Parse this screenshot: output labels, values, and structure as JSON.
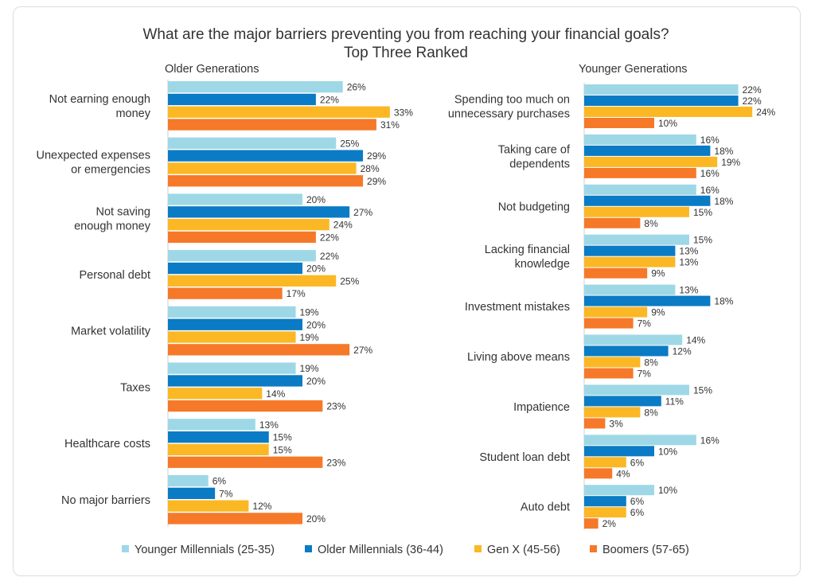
{
  "title_line1": "What are the major barriers preventing you from reaching your financial goals?",
  "title_line2": "Top Three Ranked",
  "colors": {
    "younger_millennials": "#9ed8e6",
    "older_millennials": "#0a7bc4",
    "gen_x": "#fbb824",
    "boomers": "#f57929"
  },
  "legend": [
    {
      "label": "Younger Millennials (25-35)",
      "color": "#9ed8e6"
    },
    {
      "label": "Older Millennials (36-44)",
      "color": "#0a7bc4"
    },
    {
      "label": "Gen X (45-56)",
      "color": "#fbb824"
    },
    {
      "label": "Boomers (57-65)",
      "color": "#f57929"
    }
  ],
  "chart_data": [
    {
      "type": "bar",
      "orientation": "horizontal",
      "panel_title": "Older Generations",
      "categories": [
        [
          "Not earning enough",
          "money"
        ],
        [
          "Unexpected expenses",
          "or emergencies"
        ],
        [
          "Not saving",
          "enough money"
        ],
        [
          "Personal debt"
        ],
        [
          "Market volatility"
        ],
        [
          "Taxes"
        ],
        [
          "Healthcare costs"
        ],
        [
          "No major barriers"
        ]
      ],
      "series": [
        {
          "name": "Younger Millennials (25-35)",
          "values": [
            26,
            25,
            20,
            22,
            19,
            19,
            13,
            6
          ]
        },
        {
          "name": "Older Millennials (36-44)",
          "values": [
            22,
            29,
            27,
            20,
            20,
            20,
            15,
            7
          ]
        },
        {
          "name": "Gen X (45-56)",
          "values": [
            33,
            28,
            24,
            25,
            19,
            14,
            15,
            12
          ]
        },
        {
          "name": "Boomers (57-65)",
          "values": [
            31,
            29,
            22,
            17,
            27,
            23,
            23,
            20
          ]
        }
      ],
      "value_suffix": "%"
    },
    {
      "type": "bar",
      "orientation": "horizontal",
      "panel_title": "Younger Generations",
      "categories": [
        [
          "Spending too much on",
          "unnecessary purchases"
        ],
        [
          "Taking care of",
          "dependents"
        ],
        [
          "Not budgeting"
        ],
        [
          "Lacking financial",
          "knowledge"
        ],
        [
          "Investment mistakes"
        ],
        [
          "Living above means"
        ],
        [
          "Impatience"
        ],
        [
          "Student loan debt"
        ],
        [
          "Auto debt"
        ]
      ],
      "series": [
        {
          "name": "Younger Millennials (25-35)",
          "values": [
            22,
            16,
            16,
            15,
            13,
            14,
            15,
            16,
            10
          ]
        },
        {
          "name": "Older Millennials (36-44)",
          "values": [
            22,
            18,
            18,
            13,
            18,
            12,
            11,
            10,
            6
          ]
        },
        {
          "name": "Gen X (45-56)",
          "values": [
            24,
            19,
            15,
            13,
            9,
            8,
            8,
            6,
            6
          ]
        },
        {
          "name": "Boomers (57-65)",
          "values": [
            10,
            16,
            8,
            9,
            7,
            7,
            3,
            4,
            2
          ]
        }
      ],
      "value_suffix": "%"
    }
  ]
}
